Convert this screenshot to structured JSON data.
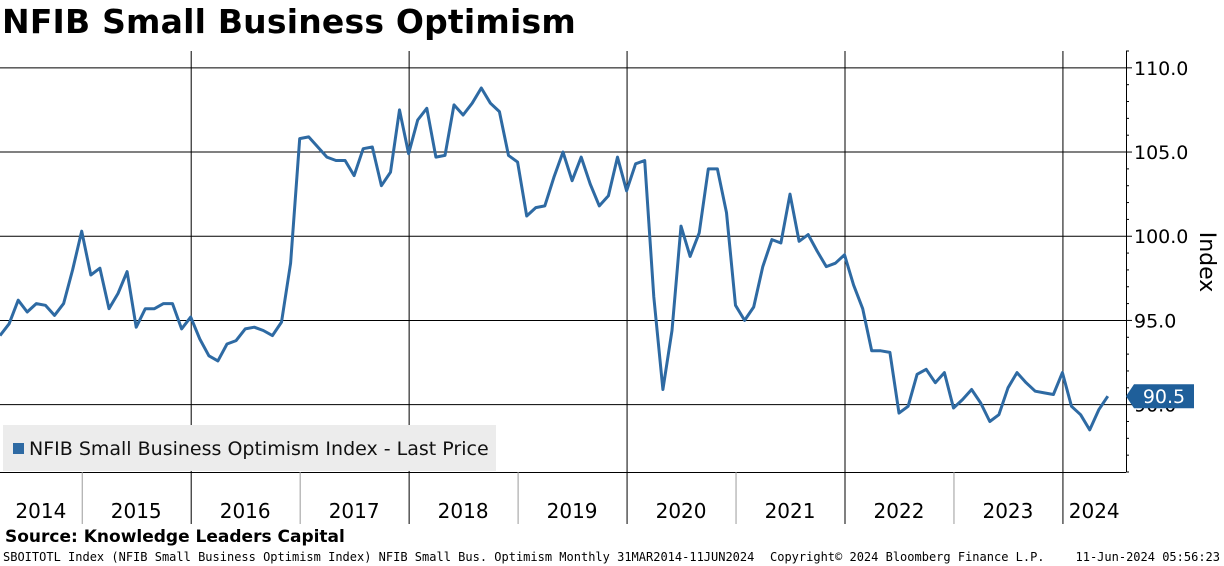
{
  "chart_data": {
    "type": "line",
    "title": "NFIB Small Business Optimism",
    "ylabel": "Index",
    "xlabel": "",
    "ylim": [
      86.0,
      111.0
    ],
    "yticks": [
      90.0,
      95.0,
      100.0,
      105.0,
      110.0
    ],
    "ytick_labels": [
      "90.0",
      "95.0",
      "100.0",
      "105.0",
      "110.0"
    ],
    "xlim": [
      0,
      124
    ],
    "year_labels": [
      {
        "label": "2014",
        "center": 4.5
      },
      {
        "label": "2015",
        "center": 15
      },
      {
        "label": "2016",
        "center": 27
      },
      {
        "label": "2017",
        "center": 39
      },
      {
        "label": "2018",
        "center": 51
      },
      {
        "label": "2019",
        "center": 63
      },
      {
        "label": "2020",
        "center": 75
      },
      {
        "label": "2021",
        "center": 87
      },
      {
        "label": "2022",
        "center": 99
      },
      {
        "label": "2023",
        "center": 111
      },
      {
        "label": "2024",
        "center": 120.5
      }
    ],
    "year_separators": [
      9,
      21,
      33,
      45,
      57,
      69,
      81,
      93,
      105,
      117
    ],
    "major_gridlines_x": [
      21,
      45,
      69,
      93,
      117
    ],
    "legend": {
      "label": "NFIB Small Business Optimism Index - Last Price",
      "position": "bottom-left",
      "color": "#2e6aa3"
    },
    "last_value_label": "90.5",
    "series": [
      {
        "name": "NFIB Small Business Optimism Index - Last Price",
        "color": "#2e6aa3",
        "x_start": 0,
        "values": [
          94.1,
          94.8,
          96.2,
          95.5,
          96.0,
          95.9,
          95.3,
          96.0,
          98.0,
          100.3,
          97.7,
          98.1,
          95.7,
          96.6,
          97.9,
          94.6,
          95.7,
          95.7,
          96.0,
          96.0,
          94.5,
          95.2,
          93.9,
          92.9,
          92.6,
          93.6,
          93.8,
          94.5,
          94.6,
          94.4,
          94.1,
          94.9,
          98.4,
          105.8,
          105.9,
          105.3,
          104.7,
          104.5,
          104.5,
          103.6,
          105.2,
          105.3,
          103.0,
          103.8,
          107.5,
          104.9,
          106.9,
          107.6,
          104.7,
          104.8,
          107.8,
          107.2,
          107.9,
          108.8,
          107.9,
          107.4,
          104.8,
          104.4,
          101.2,
          101.7,
          101.8,
          103.5,
          105.0,
          103.3,
          104.7,
          103.1,
          101.8,
          102.4,
          104.7,
          102.7,
          104.3,
          104.5,
          96.4,
          90.9,
          94.4,
          100.6,
          98.8,
          100.2,
          104.0,
          104.0,
          101.4,
          95.9,
          95.0,
          95.8,
          98.2,
          99.8,
          99.6,
          102.5,
          99.7,
          100.1,
          99.1,
          98.2,
          98.4,
          98.9,
          97.1,
          95.7,
          93.2,
          93.2,
          93.1,
          89.5,
          89.9,
          91.8,
          92.1,
          91.3,
          91.9,
          89.8,
          90.3,
          90.9,
          90.1,
          89.0,
          89.4,
          91.0,
          91.9,
          91.3,
          90.8,
          90.7,
          90.6,
          91.9,
          89.9,
          89.4,
          88.5,
          89.7,
          90.5
        ]
      }
    ]
  },
  "source": "Source: Knowledge Leaders Capital",
  "footer": {
    "left": "SBOITOTL Index (NFIB Small Business Optimism Index) NFIB Small Bus. Optimism  Monthly 31MAR2014-11JUN2024",
    "middle": "Copyright© 2024 Bloomberg Finance L.P.",
    "right": "11-Jun-2024 05:56:23"
  }
}
